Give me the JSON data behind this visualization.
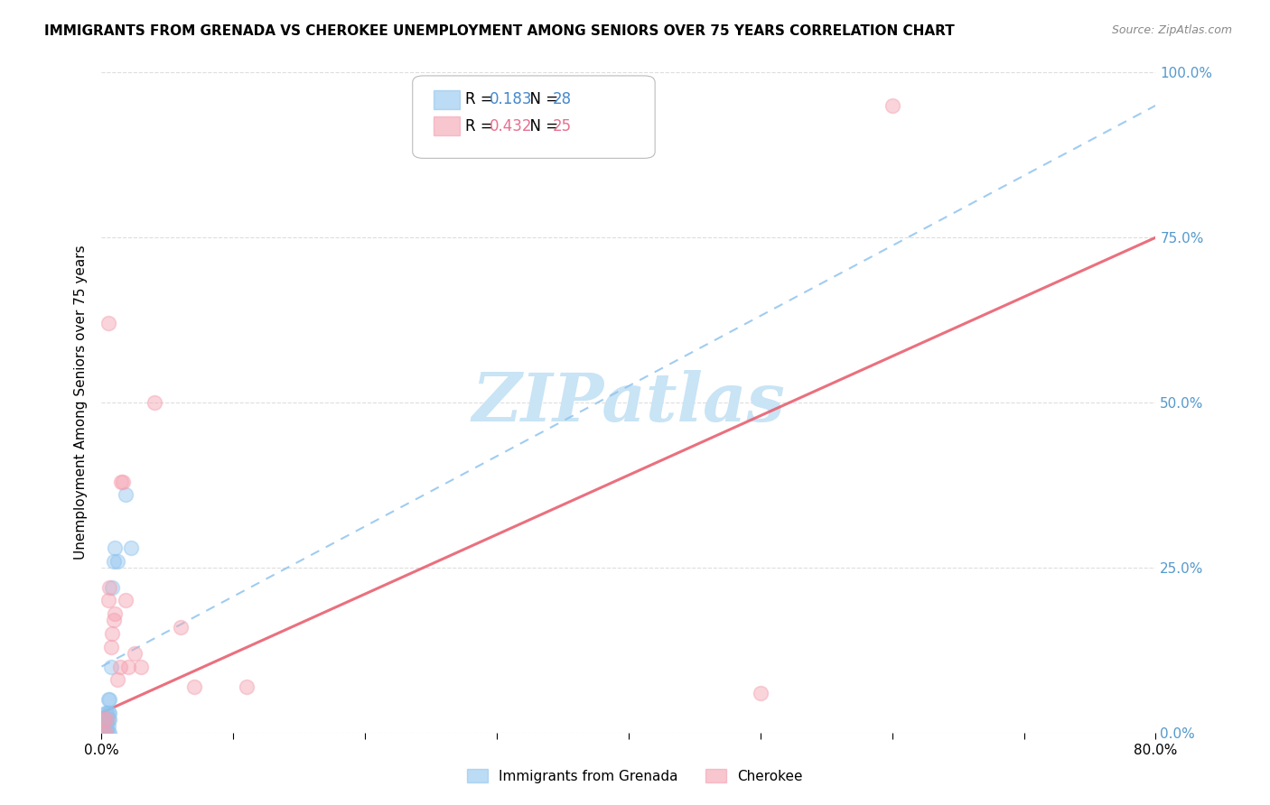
{
  "title": "IMMIGRANTS FROM GRENADA VS CHEROKEE UNEMPLOYMENT AMONG SENIORS OVER 75 YEARS CORRELATION CHART",
  "source": "Source: ZipAtlas.com",
  "ylabel": "Unemployment Among Seniors over 75 years",
  "legend_label1": "Immigrants from Grenada",
  "legend_label2": "Cherokee",
  "R1": 0.183,
  "N1": 28,
  "R2": 0.432,
  "N2": 25,
  "xlim": [
    0.0,
    0.8
  ],
  "ylim": [
    0.0,
    1.0
  ],
  "ytick_positions": [
    0.0,
    0.25,
    0.5,
    0.75,
    1.0
  ],
  "ytick_labels": [
    "0.0%",
    "25.0%",
    "50.0%",
    "75.0%",
    "100.0%"
  ],
  "xtick_positions": [
    0.0,
    0.1,
    0.2,
    0.3,
    0.4,
    0.5,
    0.6,
    0.7,
    0.8
  ],
  "xtick_labels": [
    "0.0%",
    "",
    "",
    "",
    "",
    "",
    "",
    "",
    "80.0%"
  ],
  "color_blue": "#90C4EE",
  "color_pink": "#F4A0B0",
  "trend_blue_color": "#90C4EE",
  "trend_pink_color": "#E86070",
  "watermark": "ZIPatlas",
  "watermark_color": "#C8E4F5",
  "blue_r_color": "#4488CC",
  "blue_n_color": "#4488CC",
  "pink_r_color": "#E87090",
  "pink_n_color": "#E87090",
  "blue_points_x": [
    0.001,
    0.001,
    0.002,
    0.002,
    0.003,
    0.003,
    0.003,
    0.003,
    0.004,
    0.004,
    0.004,
    0.004,
    0.005,
    0.005,
    0.005,
    0.005,
    0.005,
    0.006,
    0.006,
    0.006,
    0.006,
    0.007,
    0.008,
    0.009,
    0.01,
    0.012,
    0.018,
    0.022
  ],
  "blue_points_y": [
    0.0,
    0.02,
    0.0,
    0.01,
    0.0,
    0.01,
    0.02,
    0.03,
    0.0,
    0.01,
    0.02,
    0.03,
    0.0,
    0.01,
    0.02,
    0.03,
    0.05,
    0.0,
    0.02,
    0.03,
    0.05,
    0.1,
    0.22,
    0.26,
    0.28,
    0.26,
    0.36,
    0.28
  ],
  "pink_points_x": [
    0.001,
    0.002,
    0.003,
    0.004,
    0.005,
    0.005,
    0.006,
    0.007,
    0.008,
    0.009,
    0.01,
    0.012,
    0.014,
    0.015,
    0.016,
    0.018,
    0.02,
    0.025,
    0.03,
    0.04,
    0.06,
    0.07,
    0.11,
    0.5,
    0.6
  ],
  "pink_points_y": [
    0.0,
    0.02,
    0.0,
    0.02,
    0.2,
    0.62,
    0.22,
    0.13,
    0.15,
    0.17,
    0.18,
    0.08,
    0.1,
    0.38,
    0.38,
    0.2,
    0.1,
    0.12,
    0.1,
    0.5,
    0.16,
    0.07,
    0.07,
    0.06,
    0.95
  ],
  "blue_trend_x": [
    0.0,
    0.8
  ],
  "blue_trend_y": [
    0.1,
    0.95
  ],
  "pink_trend_x": [
    0.0,
    0.8
  ],
  "pink_trend_y": [
    0.03,
    0.75
  ],
  "marker_size": 130,
  "marker_alpha": 0.45,
  "marker_linewidth": 1.2
}
